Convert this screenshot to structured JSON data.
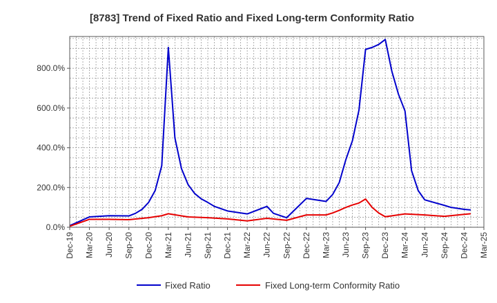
{
  "chart_data": {
    "type": "line",
    "title": "[8783]  Trend of Fixed Ratio and Fixed Long-term Conformity Ratio",
    "xlabel": "",
    "ylabel": "",
    "ylim": [
      0,
      960
    ],
    "y_ticks": [
      0,
      200,
      400,
      600,
      800
    ],
    "y_tick_labels": [
      "0.0%",
      "200.0%",
      "400.0%",
      "600.0%",
      "800.0%"
    ],
    "x_tick_labels": [
      "Dec-19",
      "Mar-20",
      "Jun-20",
      "Sep-20",
      "Dec-20",
      "Mar-21",
      "Jun-21",
      "Sep-21",
      "Dec-21",
      "Mar-22",
      "Jun-22",
      "Sep-22",
      "Dec-22",
      "Mar-23",
      "Jun-23",
      "Sep-23",
      "Dec-23",
      "Mar-24",
      "Jun-24",
      "Sep-24",
      "Dec-24",
      "Mar-25"
    ],
    "x_range_months": [
      0,
      63
    ],
    "grid": true,
    "legend_position": "bottom",
    "series": [
      {
        "name": "Fixed Ratio",
        "color": "#0000cc",
        "points": [
          [
            0,
            8
          ],
          [
            3,
            52
          ],
          [
            6,
            58
          ],
          [
            9,
            57
          ],
          [
            10,
            70
          ],
          [
            11,
            90
          ],
          [
            12,
            125
          ],
          [
            13,
            185
          ],
          [
            14,
            310
          ],
          [
            15,
            905
          ],
          [
            16,
            450
          ],
          [
            17,
            295
          ],
          [
            18,
            215
          ],
          [
            19,
            170
          ],
          [
            20,
            143
          ],
          [
            21,
            125
          ],
          [
            22,
            105
          ],
          [
            24,
            82
          ],
          [
            27,
            67
          ],
          [
            30,
            105
          ],
          [
            31,
            70
          ],
          [
            33,
            48
          ],
          [
            36,
            145
          ],
          [
            39,
            130
          ],
          [
            40,
            165
          ],
          [
            41,
            225
          ],
          [
            42,
            340
          ],
          [
            43,
            435
          ],
          [
            44,
            590
          ],
          [
            45,
            895
          ],
          [
            46,
            905
          ],
          [
            47,
            920
          ],
          [
            48,
            945
          ],
          [
            49,
            785
          ],
          [
            50,
            670
          ],
          [
            51,
            585
          ],
          [
            52,
            285
          ],
          [
            53,
            185
          ],
          [
            54,
            138
          ],
          [
            57,
            110
          ],
          [
            58,
            100
          ],
          [
            60,
            90
          ],
          [
            61,
            87
          ]
        ]
      },
      {
        "name": "Fixed Long-term Conformity Ratio",
        "color": "#e60000",
        "points": [
          [
            0,
            5
          ],
          [
            3,
            40
          ],
          [
            6,
            40
          ],
          [
            9,
            38
          ],
          [
            12,
            48
          ],
          [
            14,
            58
          ],
          [
            15,
            68
          ],
          [
            18,
            52
          ],
          [
            21,
            48
          ],
          [
            24,
            42
          ],
          [
            27,
            32
          ],
          [
            30,
            45
          ],
          [
            33,
            35
          ],
          [
            36,
            62
          ],
          [
            39,
            62
          ],
          [
            40,
            72
          ],
          [
            41,
            85
          ],
          [
            42,
            100
          ],
          [
            43,
            112
          ],
          [
            44,
            122
          ],
          [
            45,
            142
          ],
          [
            46,
            100
          ],
          [
            47,
            72
          ],
          [
            48,
            53
          ],
          [
            51,
            67
          ],
          [
            54,
            62
          ],
          [
            57,
            55
          ],
          [
            60,
            65
          ],
          [
            61,
            68
          ]
        ]
      }
    ]
  }
}
